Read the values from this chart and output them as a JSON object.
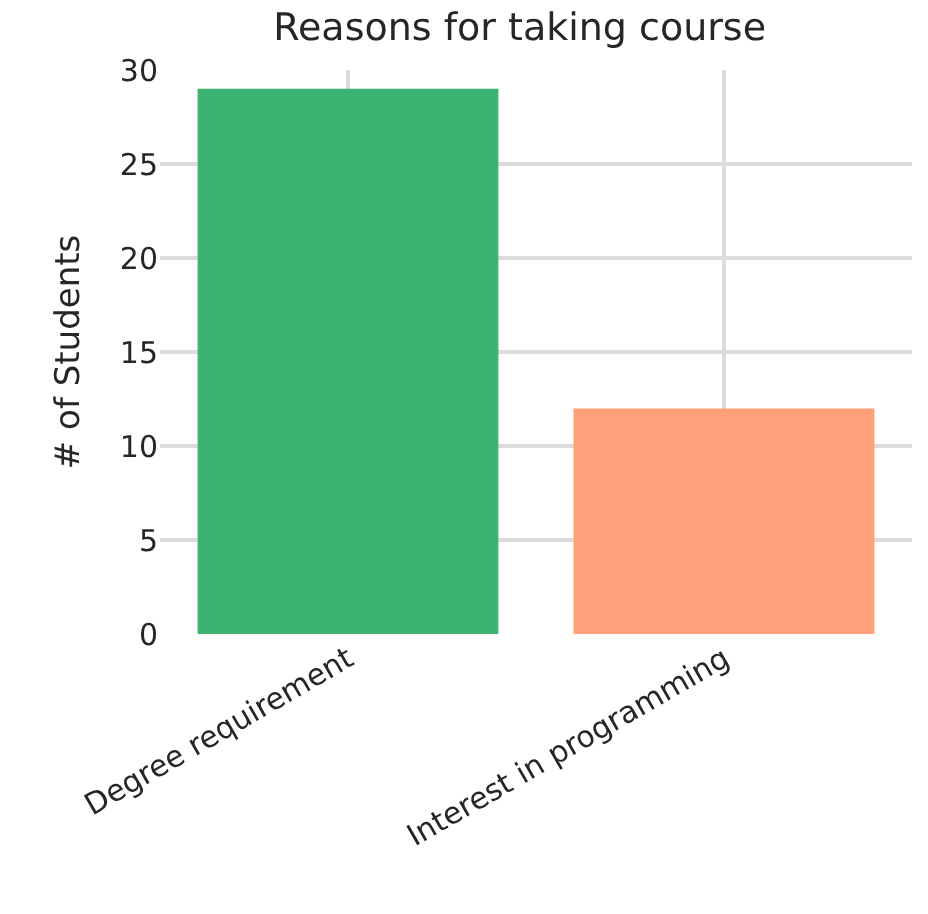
{
  "chart_data": {
    "type": "bar",
    "title": "Reasons for taking course",
    "ylabel": "# of Students",
    "categories": [
      "Degree requirement",
      "Interest in programming"
    ],
    "values": [
      29,
      12
    ],
    "colors": [
      "#3cb371",
      "#ffa07a"
    ],
    "ylim": [
      0,
      30
    ],
    "yticks": [
      0,
      5,
      10,
      15,
      20,
      25,
      30
    ],
    "grid": true
  }
}
